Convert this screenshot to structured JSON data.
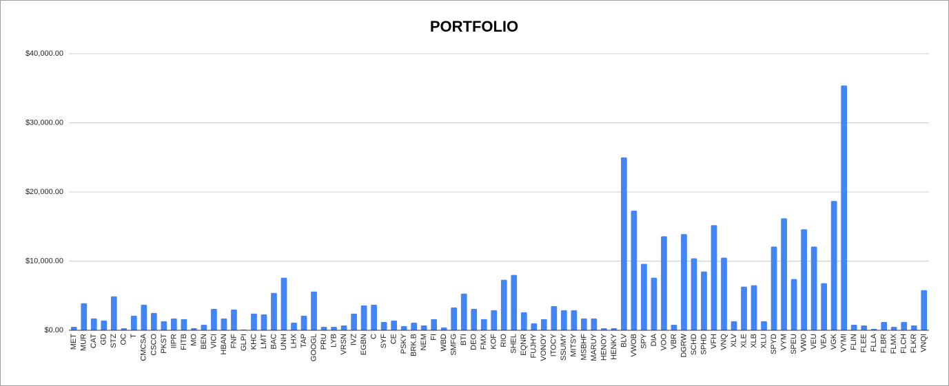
{
  "chart_data": {
    "type": "bar",
    "title": "PORTFOLIO",
    "categories": [
      "MET",
      "MUR",
      "CAT",
      "GD",
      "STZ",
      "OC",
      "T",
      "CMCSA",
      "CSCO",
      "PKST",
      "IIPR",
      "FITB",
      "MO",
      "BEN",
      "VICI",
      "HBAN",
      "FNF",
      "GLPI",
      "KHC",
      "LMT",
      "BAC",
      "UNH",
      "LHX",
      "TAP",
      "GOOGL",
      "PRU",
      "LYB",
      "VRSN",
      "IVZ",
      "EGBN",
      "C",
      "SYF",
      "CE",
      "PSKY",
      "BRK.B",
      "NEM",
      "FI",
      "WBD",
      "SMFG",
      "BTI",
      "DEO",
      "FMX",
      "KOF",
      "RIO",
      "SHEL",
      "EQNR",
      "FUJHY",
      "VONOY",
      "ITOCY",
      "SSUMY",
      "MITSY",
      "MSBHF",
      "MARUY",
      "HENOY",
      "HENKY",
      "BLV",
      "VWOB",
      "SPY",
      "DIA",
      "VOO",
      "VBR",
      "DGRW",
      "SCHD",
      "SPHD",
      "VFH",
      "VNQ",
      "XLV",
      "XLE",
      "XLB",
      "XLU",
      "SPYD",
      "VYM",
      "SPEU",
      "VWO",
      "VEU",
      "VEA",
      "VGK",
      "VYMI",
      "FLIN",
      "FLEE",
      "FLLA",
      "FLBR",
      "FLMX",
      "FLCH",
      "FLKR",
      "VNQI"
    ],
    "values": [
      500,
      3900,
      1700,
      1400,
      4900,
      300,
      2100,
      3700,
      2500,
      1300,
      1700,
      1600,
      300,
      800,
      3100,
      1700,
      3000,
      100,
      2400,
      2300,
      5400,
      7600,
      1100,
      2100,
      5600,
      500,
      500,
      700,
      2400,
      3600,
      3700,
      1200,
      1400,
      600,
      1100,
      700,
      1600,
      400,
      3300,
      5300,
      3100,
      1600,
      2900,
      7300,
      8000,
      2600,
      1000,
      1600,
      3500,
      2900,
      2900,
      1700,
      1700,
      300,
      300,
      25000,
      17300,
      9600,
      7600,
      13600,
      800,
      13900,
      10400,
      8500,
      15200,
      10500,
      1300,
      6300,
      6500,
      1300,
      12100,
      16200,
      7400,
      14600,
      12100,
      6800,
      18700,
      35400,
      800,
      700,
      200,
      1200,
      500,
      1200,
      700,
      5800
    ],
    "color": "#4285f4",
    "ylim": [
      0,
      40000
    ],
    "yticks": [
      {
        "value": 0,
        "label": "$0.00"
      },
      {
        "value": 10000,
        "label": "$10,000.00"
      },
      {
        "value": 20000,
        "label": "$20,000.00"
      },
      {
        "value": 30000,
        "label": "$30,000.00"
      },
      {
        "value": 40000,
        "label": "$40,000.00"
      }
    ],
    "grid": true
  }
}
